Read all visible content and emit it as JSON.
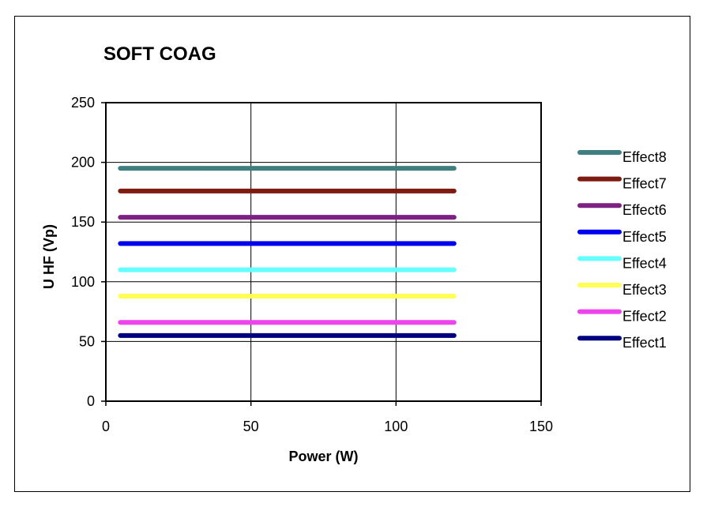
{
  "chart_data": {
    "type": "line",
    "title": "SOFT COAG",
    "xlabel": "Power (W)",
    "ylabel": "U HF (Vp)",
    "xlim": [
      0,
      150
    ],
    "ylim": [
      0,
      250
    ],
    "xticks": [
      0,
      50,
      100,
      150
    ],
    "yticks": [
      0,
      50,
      100,
      150,
      200,
      250
    ],
    "grid": true,
    "legend_position": "right",
    "x": [
      5,
      120
    ],
    "series": [
      {
        "name": "Effect8",
        "values": [
          195,
          195
        ],
        "color": "#3f7f7f"
      },
      {
        "name": "Effect7",
        "values": [
          176,
          176
        ],
        "color": "#7f1a10"
      },
      {
        "name": "Effect6",
        "values": [
          154,
          154
        ],
        "color": "#7f2085"
      },
      {
        "name": "Effect5",
        "values": [
          132,
          132
        ],
        "color": "#0000ee"
      },
      {
        "name": "Effect4",
        "values": [
          110,
          110
        ],
        "color": "#66ffff"
      },
      {
        "name": "Effect3",
        "values": [
          88,
          88
        ],
        "color": "#ffff55"
      },
      {
        "name": "Effect2",
        "values": [
          66,
          66
        ],
        "color": "#ee44ee"
      },
      {
        "name": "Effect1",
        "values": [
          55,
          55
        ],
        "color": "#000080"
      }
    ]
  }
}
